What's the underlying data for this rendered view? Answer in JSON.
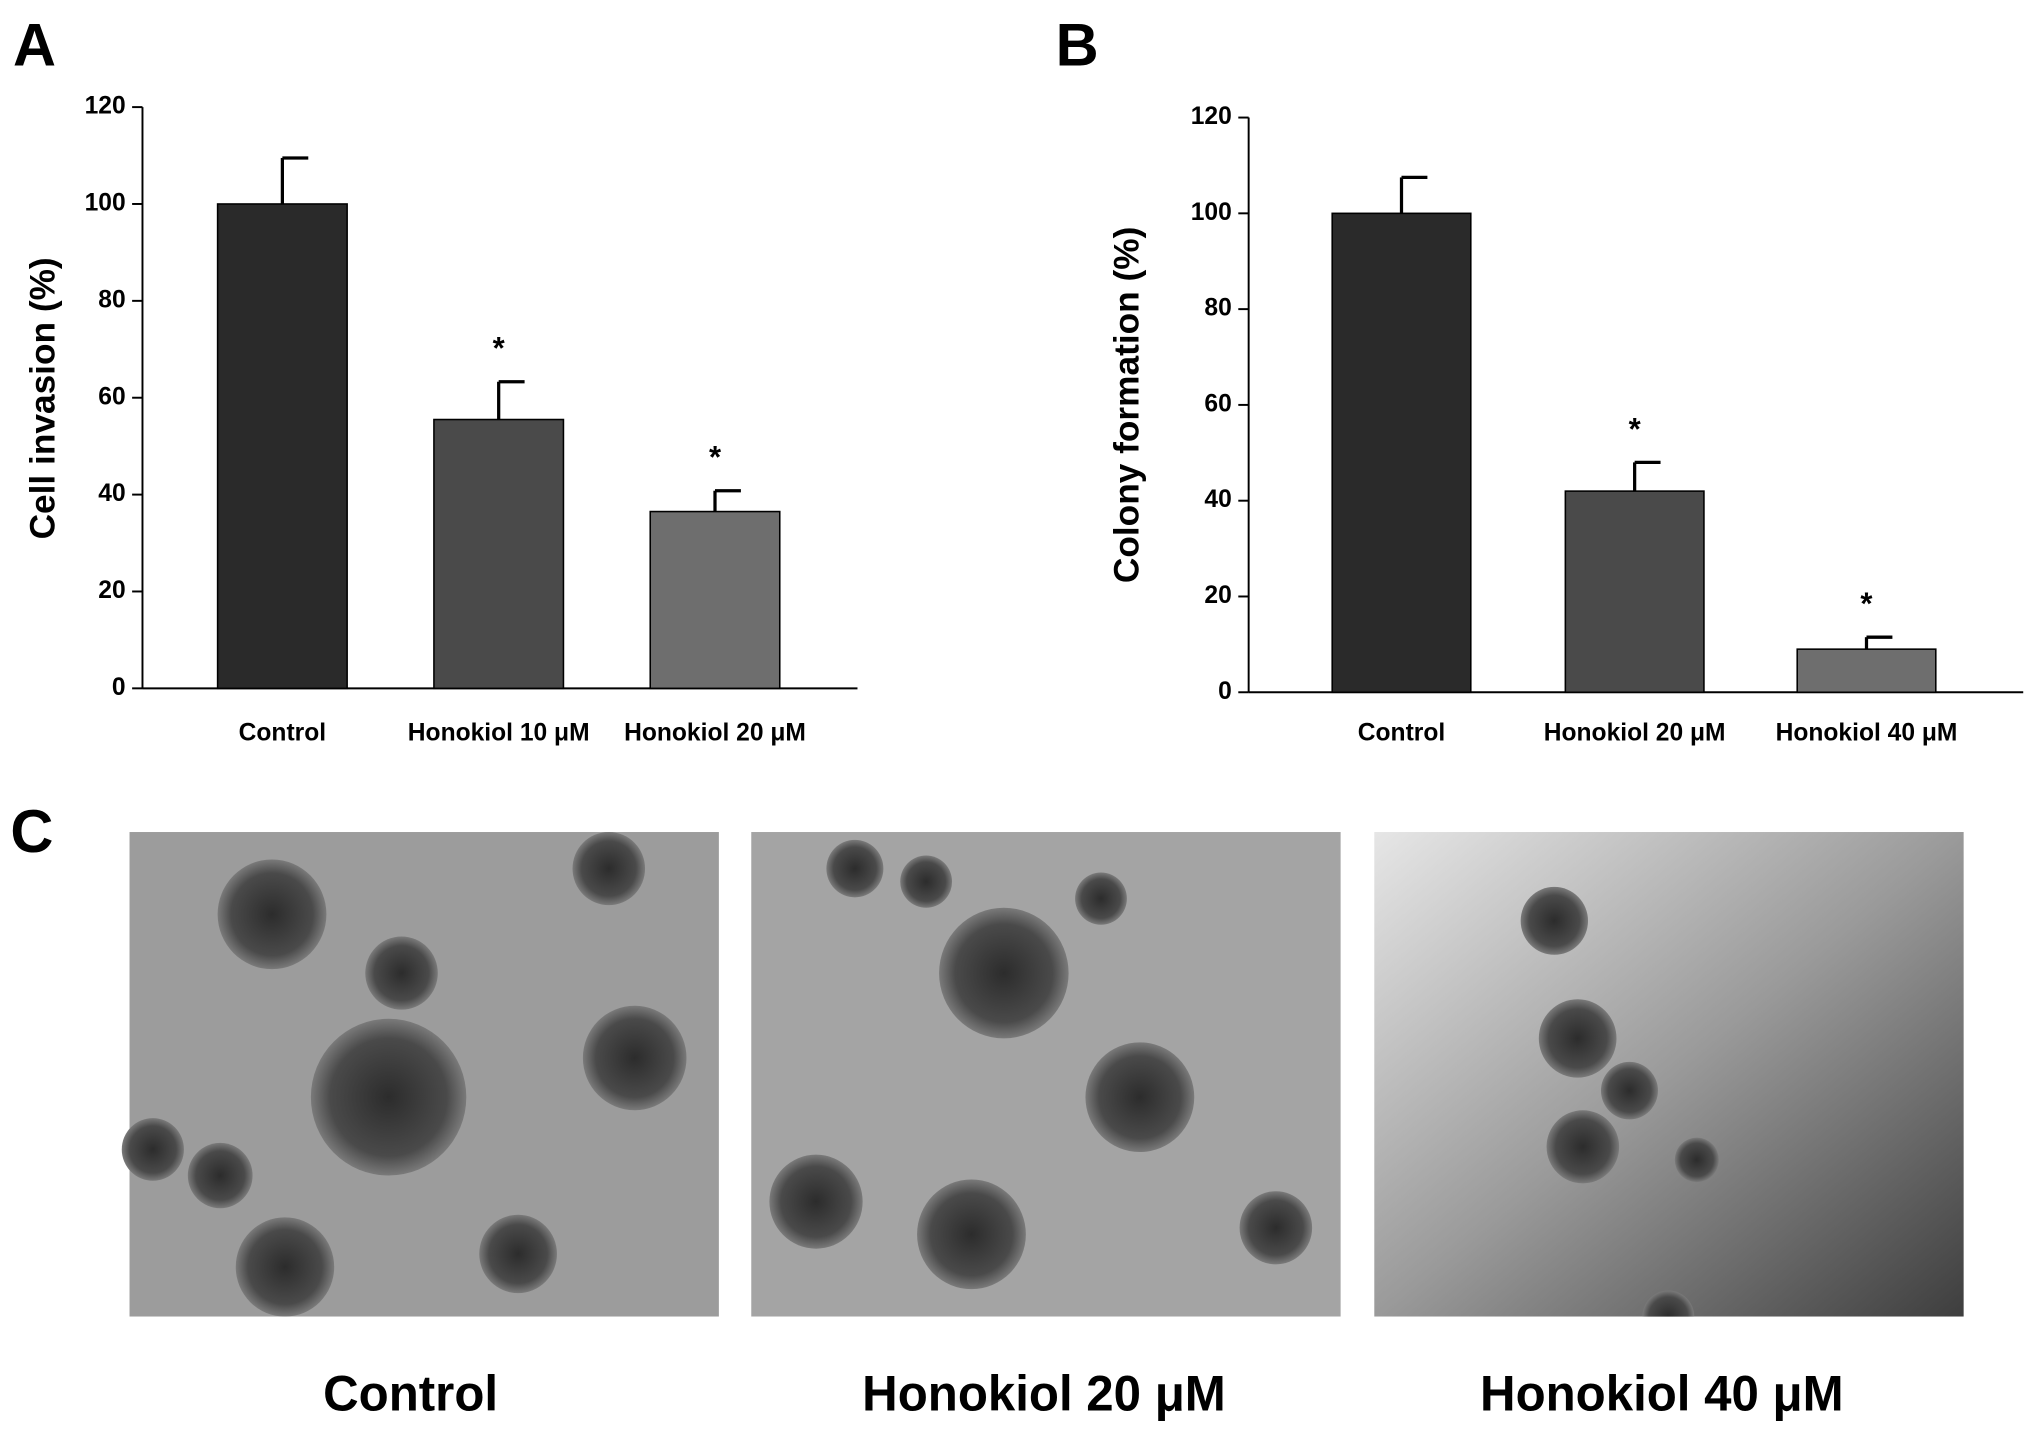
{
  "chart_data": [
    {
      "type": "bar",
      "panel_label": "A",
      "ylabel": "Cell invasion (%)",
      "categories": [
        "Control",
        "Honokiol 10 μM",
        "Honokiol 20 μM"
      ],
      "values": [
        100,
        55.5,
        36.5
      ],
      "errors": [
        9.5,
        7.8,
        4.3
      ],
      "colors": [
        "#2a2a2a",
        "#4a4a4a",
        "#6e6e6e"
      ],
      "significant": [
        false,
        true,
        true
      ],
      "significance_mark": "*",
      "ylim": [
        0,
        120
      ],
      "yticks": [
        0,
        20,
        40,
        60,
        80,
        100,
        120
      ]
    },
    {
      "type": "bar",
      "panel_label": "B",
      "ylabel": "Colony formation (%)",
      "categories": [
        "Control",
        "Honokiol 20 μM",
        "Honokiol 40 μM"
      ],
      "values": [
        100,
        42,
        9
      ],
      "errors": [
        7.5,
        6,
        2.5
      ],
      "colors": [
        "#2a2a2a",
        "#4a4a4a",
        "#6e6e6e"
      ],
      "significant": [
        false,
        true,
        true
      ],
      "significance_mark": "*",
      "ylim": [
        0,
        120
      ],
      "yticks": [
        0,
        20,
        40,
        60,
        80,
        100,
        120
      ]
    }
  ],
  "panel_c": {
    "label": "C",
    "captions": [
      "Control",
      "Honokiol 20 μM",
      "Honokiol 40 μM"
    ]
  }
}
